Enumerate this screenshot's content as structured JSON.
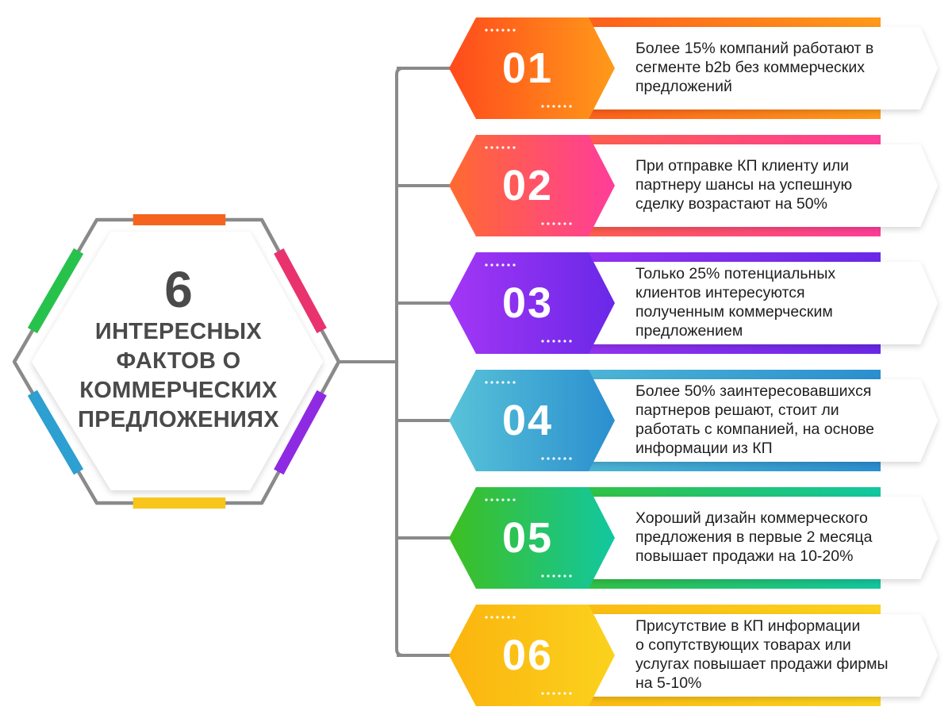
{
  "center": {
    "number": "6",
    "lines": [
      "ИНТЕРЕСНЫХ",
      "ФАКТОВ О",
      "КОММЕРЧЕСКИХ",
      "ПРЕДЛОЖЕНИЯХ"
    ]
  },
  "colors": {
    "frame": "#8a8a8a",
    "connector": "#8a8a8a",
    "hex_segments": [
      "#f5641e",
      "#e8336e",
      "#8e2be2",
      "#f7c51c",
      "#2d9fd1",
      "#27c24c"
    ]
  },
  "facts": [
    {
      "number": "01",
      "lines": [
        "Более 15% компаний работают в",
        "сегменте b2b без коммерческих",
        "предложений"
      ],
      "gradient": [
        "#ff4a1c",
        "#ff9a1a"
      ]
    },
    {
      "number": "02",
      "lines": [
        "При отправке КП клиенту или",
        "партнеру шансы на успешную",
        "сделку возрастают на 50%"
      ],
      "gradient": [
        "#ff6a30",
        "#ff3d9a"
      ]
    },
    {
      "number": "03",
      "lines": [
        "Только 25% потенциальных",
        "клиентов интересуются",
        "полученным коммерческим",
        "предложением"
      ],
      "gradient": [
        "#a336f5",
        "#6a28e8"
      ]
    },
    {
      "number": "04",
      "lines": [
        "Более 50% заинтересовавшихся",
        "партнеров решают, стоит ли",
        "работать с компанией, на основе",
        "информации из КП"
      ],
      "gradient": [
        "#58c3d8",
        "#2b8fcf"
      ]
    },
    {
      "number": "05",
      "lines": [
        "Хороший дизайн коммерческого",
        "предложения в первые 2 месяца",
        "повышает продажи на 10-20%"
      ],
      "gradient": [
        "#3ebf22",
        "#12c7a0"
      ]
    },
    {
      "number": "06",
      "lines": [
        "Присутствие в КП информации",
        "о сопутствующих товарах или",
        "услугах повышает продажи фирмы",
        "на 5-10%"
      ],
      "gradient": [
        "#fbb40e",
        "#fbd21e"
      ]
    }
  ]
}
